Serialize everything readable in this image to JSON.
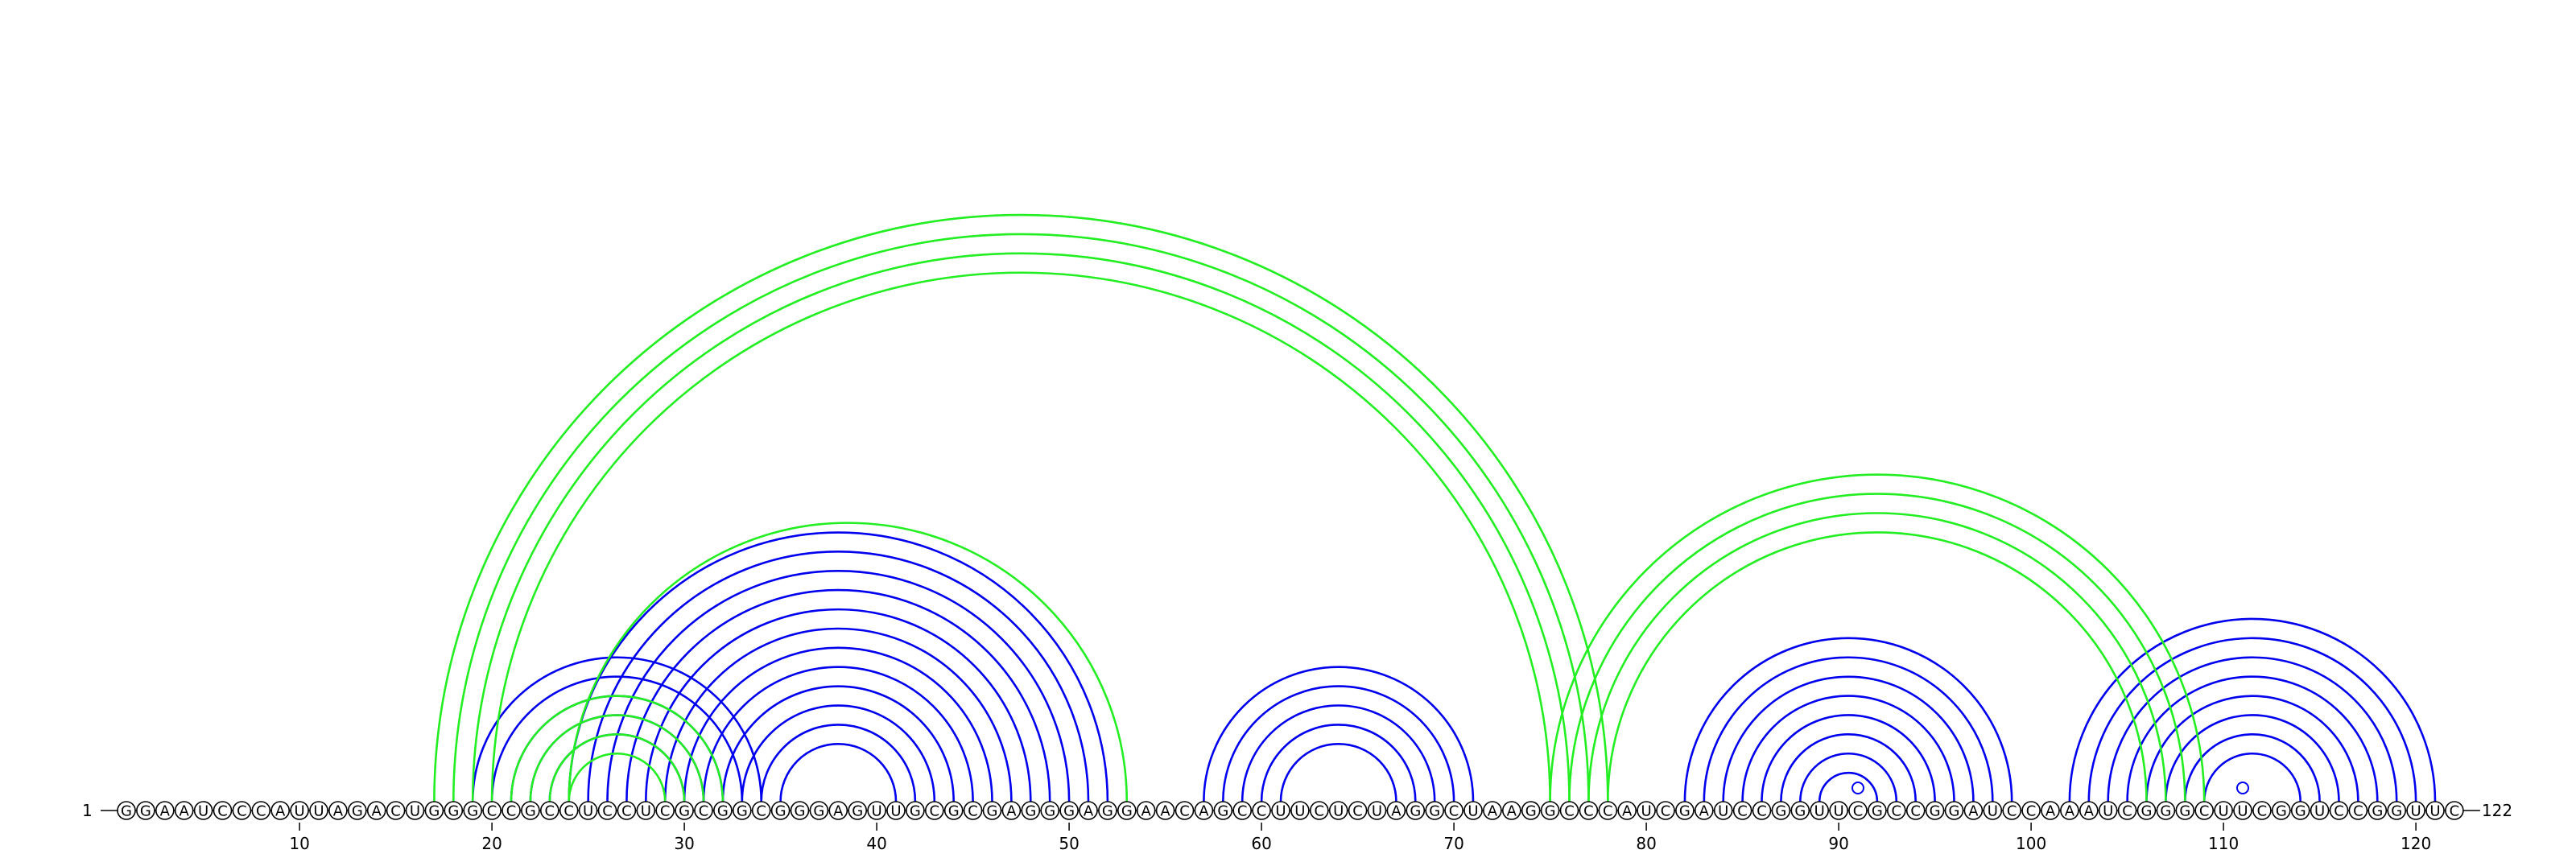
{
  "diagram": {
    "sequence": "GGAAUCCCAUUAGACUGGGCCGCCUCCUCGCGGCGGGAGUUGCGCGAGGGAGGAACAGCCUUCUCUAGGCUAAGGCCCAUCGAUCCGGUUCGCCGGAUCCAAAUCGGGCUUCGGUCCGGUUC",
    "start_label": "1",
    "end_label": "122",
    "ticks": [
      10,
      20,
      30,
      40,
      50,
      60,
      70,
      80,
      90,
      100,
      110,
      120
    ],
    "colors": {
      "structure_a": "#0000ee",
      "structure_b": "#22ee22"
    },
    "helices": [
      {
        "structure": "a",
        "i": 19,
        "j": 34,
        "len": 5
      },
      {
        "structure": "a",
        "i": 24,
        "j": 52,
        "len": 12
      },
      {
        "structure": "a",
        "i": 57,
        "j": 71,
        "len": 5
      },
      {
        "structure": "a",
        "i": 82,
        "j": 99,
        "len": 8
      },
      {
        "structure": "a",
        "i": 102,
        "j": 121,
        "len": 8
      },
      {
        "structure": "b",
        "i": 17,
        "j": 78,
        "len": 4
      },
      {
        "structure": "b",
        "i": 21,
        "j": 32,
        "len": 4
      },
      {
        "structure": "b",
        "i": 24,
        "j": 53,
        "len": 1
      },
      {
        "structure": "b",
        "i": 75,
        "j": 109,
        "len": 4
      }
    ],
    "markers": [
      91,
      111
    ]
  }
}
